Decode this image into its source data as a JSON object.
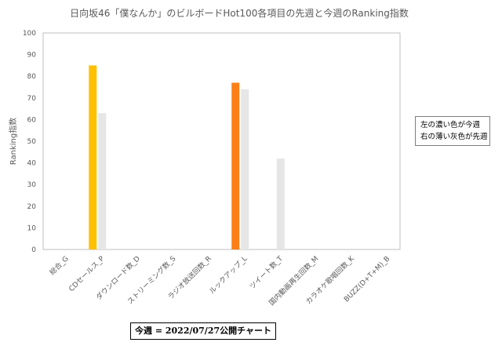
{
  "chart_data": {
    "type": "bar",
    "title": "日向坂46「僕なんか」のビルボードHot100各項目の先週と今週のRanking指数",
    "xlabel": "",
    "ylabel": "Ranking指数",
    "ylim": [
      0,
      100
    ],
    "yticks": [
      0,
      10,
      20,
      30,
      40,
      50,
      60,
      70,
      80,
      90,
      100
    ],
    "grid": false,
    "categories": [
      "総合_G",
      "CDセールス_P",
      "ダウンロード数_D",
      "ストリーミング数_S",
      "ラジオ放送回数_R",
      "ルックアップ_L",
      "ツイート数_T",
      "国内動画再生回数_M",
      "カラオケ歌唱回数_K",
      "BUZZ(D+T+M)_B"
    ],
    "series": [
      {
        "values": [
          null,
          85,
          null,
          null,
          null,
          77,
          null,
          null,
          null,
          null
        ],
        "colors": [
          "#ffc000",
          "#ffc000",
          "#ffc000",
          "#ffc000",
          "#ffc000",
          "#fd7f17",
          "#fd7f17",
          "#fd7f17",
          "#fd7f17",
          "#fd7f17"
        ]
      },
      {
        "values": [
          null,
          63,
          null,
          null,
          null,
          74,
          42,
          null,
          null,
          null
        ],
        "colors": [
          "#e6e6e6",
          "#e6e6e6",
          "#e6e6e6",
          "#e6e6e6",
          "#e6e6e6",
          "#e6e6e6",
          "#e6e6e6",
          "#e6e6e6",
          "#e6e6e6",
          "#e6e6e6"
        ]
      }
    ]
  },
  "legend_note": {
    "line1": "左の濃い色が今週",
    "line2": "右の薄い灰色が先週"
  },
  "date_label": "今週 = 2022/07/27公開チャート",
  "colors": {
    "axis": "#bfbfbf",
    "text": "#595959"
  }
}
